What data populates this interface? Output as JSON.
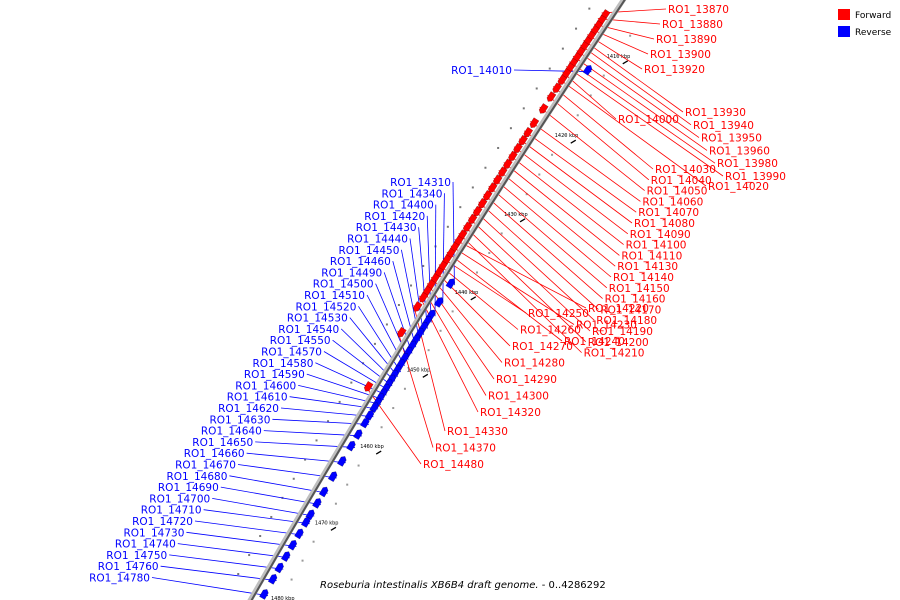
{
  "caption": {
    "organism": "Roseburia intestinalis XB6B4 draft genome.",
    "range": " - 0..4286292"
  },
  "legend": [
    {
      "label": "Forward",
      "color": "#ff0000"
    },
    {
      "label": "Reverse",
      "color": "#0000ff"
    }
  ],
  "axis": {
    "start_kbp": 1406.5,
    "end_kbp": 1482.0,
    "ticks": [
      "1410 kbp",
      "1420 kbp",
      "1430 kbp",
      "1440 kbp",
      "1450 kbp",
      "1460 kbp",
      "1470 kbp",
      "1480 kbp"
    ]
  },
  "forward_genes": [
    {
      "label": "RO1_13870",
      "kbp": 1407.2
    },
    {
      "label": "RO1_13880",
      "kbp": 1407.9
    },
    {
      "label": "RO1_13890",
      "kbp": 1408.6
    },
    {
      "label": "RO1_13900",
      "kbp": 1409.2
    },
    {
      "label": "RO1_13920",
      "kbp": 1409.9
    },
    {
      "label": "RO1_13930",
      "kbp": 1410.6
    },
    {
      "label": "RO1_13940",
      "kbp": 1411.2
    },
    {
      "label": "RO1_13950",
      "kbp": 1411.9
    },
    {
      "label": "RO1_13960",
      "kbp": 1412.6
    },
    {
      "label": "RO1_13980",
      "kbp": 1413.3
    },
    {
      "label": "RO1_13990",
      "kbp": 1413.9
    },
    {
      "label": "RO1_14000",
      "kbp": 1414.6
    },
    {
      "label": "RO1_14020",
      "kbp": 1415.4
    },
    {
      "label": "RO1_14030",
      "kbp": 1416.4
    },
    {
      "label": "RO1_14040",
      "kbp": 1417.5
    },
    {
      "label": "RO1_14050",
      "kbp": 1419.0
    },
    {
      "label": "RO1_14060",
      "kbp": 1420.8
    },
    {
      "label": "RO1_14070",
      "kbp": 1422.0
    },
    {
      "label": "RO1_14080",
      "kbp": 1423.0
    },
    {
      "label": "RO1_14090",
      "kbp": 1424.0
    },
    {
      "label": "RO1_14100",
      "kbp": 1425.0
    },
    {
      "label": "RO1_14110",
      "kbp": 1426.0
    },
    {
      "label": "RO1_14130",
      "kbp": 1427.0
    },
    {
      "label": "RO1_14140",
      "kbp": 1428.0
    },
    {
      "label": "RO1_14150",
      "kbp": 1429.0
    },
    {
      "label": "RO1_14160",
      "kbp": 1430.0
    },
    {
      "label": "RO1_14170",
      "kbp": 1431.0
    },
    {
      "label": "RO1_14180",
      "kbp": 1432.0
    },
    {
      "label": "RO1_14190",
      "kbp": 1433.0
    },
    {
      "label": "RO1_14200",
      "kbp": 1434.0
    },
    {
      "label": "RO1_14210",
      "kbp": 1435.0
    },
    {
      "label": "RO1_14220",
      "kbp": 1435.8
    },
    {
      "label": "RO1_14230",
      "kbp": 1436.6
    },
    {
      "label": "RO1_14240",
      "kbp": 1437.4
    },
    {
      "label": "RO1_14250",
      "kbp": 1438.2
    },
    {
      "label": "RO1_14260",
      "kbp": 1439.0
    },
    {
      "label": "RO1_14270",
      "kbp": 1439.8
    },
    {
      "label": "RO1_14280",
      "kbp": 1440.6
    },
    {
      "label": "RO1_14290",
      "kbp": 1441.4
    },
    {
      "label": "RO1_14300",
      "kbp": 1442.2
    },
    {
      "label": "RO1_14320",
      "kbp": 1443.0
    },
    {
      "label": "RO1_14330",
      "kbp": 1444.2
    },
    {
      "label": "RO1_14370",
      "kbp": 1447.5
    },
    {
      "label": "RO1_14480",
      "kbp": 1454.5
    }
  ],
  "reverse_genes": [
    {
      "label": "RO1_14010",
      "kbp": 1412.9
    },
    {
      "label": "RO1_14310",
      "kbp": 1440.0
    },
    {
      "label": "RO1_14340",
      "kbp": 1442.4
    },
    {
      "label": "RO1_14400",
      "kbp": 1444.0
    },
    {
      "label": "RO1_14420",
      "kbp": 1444.8
    },
    {
      "label": "RO1_14430",
      "kbp": 1445.6
    },
    {
      "label": "RO1_14440",
      "kbp": 1446.4
    },
    {
      "label": "RO1_14450",
      "kbp": 1447.2
    },
    {
      "label": "RO1_14460",
      "kbp": 1448.0
    },
    {
      "label": "RO1_14490",
      "kbp": 1448.8
    },
    {
      "label": "RO1_14500",
      "kbp": 1449.6
    },
    {
      "label": "RO1_14510",
      "kbp": 1450.4
    },
    {
      "label": "RO1_14520",
      "kbp": 1451.2
    },
    {
      "label": "RO1_14530",
      "kbp": 1451.8
    },
    {
      "label": "RO1_14540",
      "kbp": 1452.4
    },
    {
      "label": "RO1_14550",
      "kbp": 1453.0
    },
    {
      "label": "RO1_14570",
      "kbp": 1453.6
    },
    {
      "label": "RO1_14580",
      "kbp": 1454.2
    },
    {
      "label": "RO1_14590",
      "kbp": 1454.8
    },
    {
      "label": "RO1_14600",
      "kbp": 1455.4
    },
    {
      "label": "RO1_14610",
      "kbp": 1456.0
    },
    {
      "label": "RO1_14620",
      "kbp": 1457.0
    },
    {
      "label": "RO1_14630",
      "kbp": 1458.0
    },
    {
      "label": "RO1_14640",
      "kbp": 1459.5
    },
    {
      "label": "RO1_14650",
      "kbp": 1461.0
    },
    {
      "label": "RO1_14660",
      "kbp": 1463.0
    },
    {
      "label": "RO1_14670",
      "kbp": 1465.0
    },
    {
      "label": "RO1_14680",
      "kbp": 1467.0
    },
    {
      "label": "RO1_14690",
      "kbp": 1468.5
    },
    {
      "label": "RO1_14700",
      "kbp": 1470.0
    },
    {
      "label": "RO1_14710",
      "kbp": 1471.0
    },
    {
      "label": "RO1_14720",
      "kbp": 1472.5
    },
    {
      "label": "RO1_14730",
      "kbp": 1474.0
    },
    {
      "label": "RO1_14740",
      "kbp": 1475.5
    },
    {
      "label": "RO1_14750",
      "kbp": 1477.0
    },
    {
      "label": "RO1_14760",
      "kbp": 1478.5
    },
    {
      "label": "RO1_14780",
      "kbp": 1480.5
    }
  ]
}
